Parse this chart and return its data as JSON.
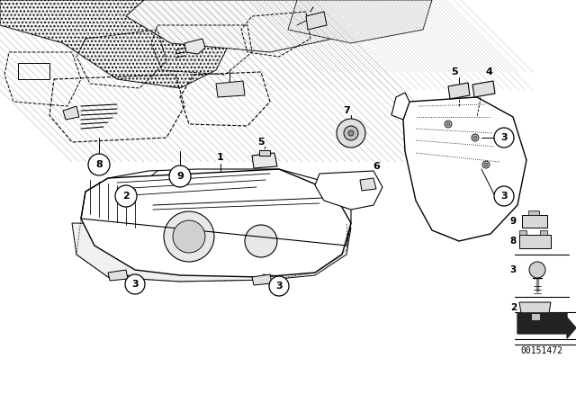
{
  "background_color": "#ffffff",
  "line_color": "#000000",
  "image_number": "00151472",
  "fig_width": 6.4,
  "fig_height": 4.48,
  "dpi": 100
}
